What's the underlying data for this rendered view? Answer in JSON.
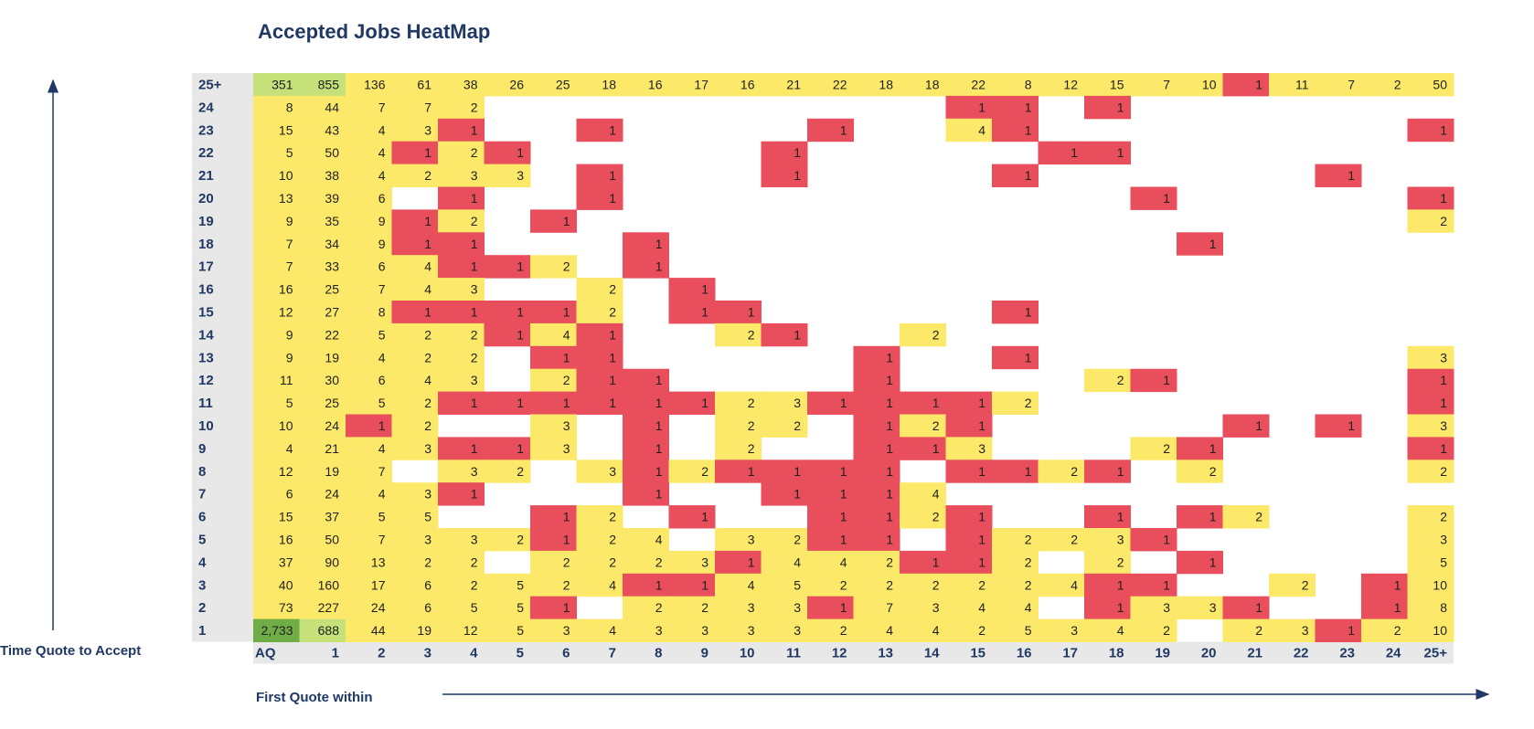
{
  "chart_data": {
    "type": "heatmap",
    "title": "Accepted Jobs HeatMap",
    "xlabel": "First Quote within",
    "ylabel": "Time Quote to Accept",
    "x_categories": [
      "AQ",
      "1",
      "2",
      "3",
      "4",
      "5",
      "6",
      "7",
      "8",
      "9",
      "10",
      "11",
      "12",
      "13",
      "14",
      "15",
      "16",
      "17",
      "18",
      "19",
      "20",
      "21",
      "22",
      "23",
      "24",
      "25+"
    ],
    "y_categories": [
      "25+",
      "24",
      "23",
      "22",
      "21",
      "20",
      "19",
      "18",
      "17",
      "16",
      "15",
      "14",
      "13",
      "12",
      "11",
      "10",
      "9",
      "8",
      "7",
      "6",
      "5",
      "4",
      "3",
      "2",
      "1"
    ],
    "colors": {
      "high": "#70ad47",
      "mid_high": "#c6e07a",
      "mid": "#fce96a",
      "low": "#e84e5c",
      "empty": "#ffffff",
      "axis_band": "#e8e8e8",
      "axis_text": "#1f3864"
    },
    "values": [
      [
        "351",
        "855",
        "136",
        "61",
        "38",
        "26",
        "25",
        "18",
        "16",
        "17",
        "16",
        "21",
        "22",
        "18",
        "18",
        "22",
        "8",
        "12",
        "15",
        "7",
        "10",
        "1",
        "11",
        "7",
        "2",
        "50"
      ],
      [
        "8",
        "44",
        "7",
        "7",
        "2",
        "",
        "",
        "",
        "",
        "",
        "",
        "",
        "",
        "",
        "",
        "1",
        "1",
        "",
        "1",
        "",
        "",
        "",
        "",
        "",
        "",
        ""
      ],
      [
        "15",
        "43",
        "4",
        "3",
        "1",
        "",
        "",
        "1",
        "",
        "",
        "",
        "",
        "1",
        "",
        "",
        "4",
        "1",
        "",
        "",
        "",
        "",
        "",
        "",
        "",
        "",
        "1"
      ],
      [
        "5",
        "50",
        "4",
        "1",
        "2",
        "1",
        "",
        "",
        "",
        "",
        "",
        "1",
        "",
        "",
        "",
        "",
        "",
        "1",
        "1",
        "",
        "",
        "",
        "",
        "",
        "",
        ""
      ],
      [
        "10",
        "38",
        "4",
        "2",
        "3",
        "3",
        "",
        "1",
        "",
        "",
        "",
        "1",
        "",
        "",
        "",
        "",
        "1",
        "",
        "",
        "",
        "",
        "",
        "",
        "1",
        "",
        ""
      ],
      [
        "13",
        "39",
        "6",
        "",
        "1",
        "",
        "",
        "1",
        "",
        "",
        "",
        "",
        "",
        "",
        "",
        "",
        "",
        "",
        "",
        "1",
        "",
        "",
        "",
        "",
        "",
        "1"
      ],
      [
        "9",
        "35",
        "9",
        "1",
        "2",
        "",
        "1",
        "",
        "",
        "",
        "",
        "",
        "",
        "",
        "",
        "",
        "",
        "",
        "",
        "",
        "",
        "",
        "",
        "",
        "",
        "2"
      ],
      [
        "7",
        "34",
        "9",
        "1",
        "1",
        "",
        "",
        "",
        "1",
        "",
        "",
        "",
        "",
        "",
        "",
        "",
        "",
        "",
        "",
        "",
        "1",
        "",
        "",
        "",
        "",
        ""
      ],
      [
        "7",
        "33",
        "6",
        "4",
        "1",
        "1",
        "2",
        "",
        "1",
        "",
        "",
        "",
        "",
        "",
        "",
        "",
        "",
        "",
        "",
        "",
        "",
        "",
        "",
        "",
        "",
        ""
      ],
      [
        "16",
        "25",
        "7",
        "4",
        "3",
        "",
        "",
        "2",
        "",
        "1",
        "",
        "",
        "",
        "",
        "",
        "",
        "",
        "",
        "",
        "",
        "",
        "",
        "",
        "",
        "",
        ""
      ],
      [
        "12",
        "27",
        "8",
        "1",
        "1",
        "1",
        "1",
        "2",
        "",
        "1",
        "1",
        "",
        "",
        "",
        "",
        "",
        "1",
        "",
        "",
        "",
        "",
        "",
        "",
        "",
        "",
        ""
      ],
      [
        "9",
        "22",
        "5",
        "2",
        "2",
        "1",
        "4",
        "1",
        "",
        "",
        "2",
        "1",
        "",
        "",
        "2",
        "",
        "",
        "",
        "",
        "",
        "",
        "",
        "",
        "",
        "",
        ""
      ],
      [
        "9",
        "19",
        "4",
        "2",
        "2",
        "",
        "1",
        "1",
        "",
        "",
        "",
        "",
        "",
        "1",
        "",
        "",
        "1",
        "",
        "",
        "",
        "",
        "",
        "",
        "",
        "",
        "3"
      ],
      [
        "11",
        "30",
        "6",
        "4",
        "3",
        "",
        "2",
        "1",
        "1",
        "",
        "",
        "",
        "",
        "1",
        "",
        "",
        "",
        "",
        "2",
        "1",
        "",
        "",
        "",
        "",
        "",
        "1"
      ],
      [
        "5",
        "25",
        "5",
        "2",
        "1",
        "1",
        "1",
        "1",
        "1",
        "1",
        "2",
        "3",
        "1",
        "1",
        "1",
        "1",
        "2",
        "",
        "",
        "",
        "",
        "",
        "",
        "",
        "",
        "1"
      ],
      [
        "10",
        "24",
        "1",
        "2",
        "",
        "",
        "3",
        "",
        "1",
        "",
        "2",
        "2",
        "",
        "1",
        "2",
        "1",
        "",
        "",
        "",
        "",
        "",
        "1",
        "",
        "1",
        "",
        "3"
      ],
      [
        "4",
        "21",
        "4",
        "3",
        "1",
        "1",
        "3",
        "",
        "1",
        "",
        "2",
        "",
        "",
        "1",
        "1",
        "3",
        "",
        "",
        "",
        "2",
        "1",
        "",
        "",
        "",
        "",
        "1"
      ],
      [
        "12",
        "19",
        "7",
        "",
        "3",
        "2",
        "",
        "3",
        "1",
        "2",
        "1",
        "1",
        "1",
        "1",
        "",
        "1",
        "1",
        "2",
        "1",
        "",
        "2",
        "",
        "",
        "",
        "",
        "2"
      ],
      [
        "6",
        "24",
        "4",
        "3",
        "1",
        "",
        "",
        "",
        "1",
        "",
        "",
        "1",
        "1",
        "1",
        "4",
        "",
        "",
        "",
        "",
        "",
        "",
        "",
        "",
        "",
        "",
        ""
      ],
      [
        "15",
        "37",
        "5",
        "5",
        "",
        "",
        "1",
        "2",
        "",
        "1",
        "",
        "",
        "1",
        "1",
        "2",
        "1",
        "",
        "",
        "1",
        "",
        "1",
        "2",
        "",
        "",
        "",
        "2"
      ],
      [
        "16",
        "50",
        "7",
        "3",
        "3",
        "2",
        "1",
        "2",
        "4",
        "",
        "3",
        "2",
        "1",
        "1",
        "",
        "1",
        "2",
        "2",
        "3",
        "1",
        "",
        "",
        "",
        "",
        "",
        "3"
      ],
      [
        "37",
        "90",
        "13",
        "2",
        "2",
        "",
        "2",
        "2",
        "2",
        "3",
        "1",
        "4",
        "4",
        "2",
        "1",
        "1",
        "2",
        "",
        "2",
        "",
        "1",
        "",
        "",
        "",
        "",
        "5"
      ],
      [
        "40",
        "160",
        "17",
        "6",
        "2",
        "5",
        "2",
        "4",
        "1",
        "1",
        "4",
        "5",
        "2",
        "2",
        "2",
        "2",
        "2",
        "4",
        "1",
        "1",
        "",
        "",
        "2",
        "",
        "1",
        "10"
      ],
      [
        "73",
        "227",
        "24",
        "6",
        "5",
        "5",
        "1",
        "",
        "2",
        "2",
        "3",
        "3",
        "1",
        "7",
        "3",
        "4",
        "4",
        "",
        "1",
        "3",
        "3",
        "1",
        "",
        "",
        "1",
        "8"
      ],
      [
        "2,733",
        "688",
        "44",
        "19",
        "12",
        "5",
        "3",
        "4",
        "3",
        "3",
        "3",
        "3",
        "2",
        "4",
        "4",
        "2",
        "5",
        "3",
        "4",
        "2",
        "",
        "2",
        "3",
        "1",
        "2",
        "10"
      ]
    ],
    "cell_colors": [
      [
        "G",
        "G",
        "Y",
        "Y",
        "Y",
        "Y",
        "Y",
        "Y",
        "Y",
        "Y",
        "Y",
        "Y",
        "Y",
        "Y",
        "Y",
        "Y",
        "Y",
        "Y",
        "Y",
        "Y",
        "Y",
        "R",
        "Y",
        "Y",
        "Y",
        "Y"
      ],
      [
        "Y",
        "Y",
        "Y",
        "Y",
        "Y",
        "",
        "",
        "",
        "",
        "",
        "",
        "",
        "",
        "",
        "",
        "R",
        "R",
        "",
        "R",
        "",
        "",
        "",
        "",
        "",
        "",
        ""
      ],
      [
        "Y",
        "Y",
        "Y",
        "Y",
        "R",
        "",
        "",
        "R",
        "",
        "",
        "",
        "",
        "R",
        "",
        "",
        "Y",
        "R",
        "",
        "",
        "",
        "",
        "",
        "",
        "",
        "",
        "R"
      ],
      [
        "Y",
        "Y",
        "Y",
        "R",
        "Y",
        "R",
        "",
        "",
        "",
        "",
        "",
        "R",
        "",
        "",
        "",
        "",
        "",
        "R",
        "R",
        "",
        "",
        "",
        "",
        "",
        "",
        ""
      ],
      [
        "Y",
        "Y",
        "Y",
        "Y",
        "Y",
        "Y",
        "",
        "R",
        "",
        "",
        "",
        "R",
        "",
        "",
        "",
        "",
        "R",
        "",
        "",
        "",
        "",
        "",
        "",
        "R",
        "",
        ""
      ],
      [
        "Y",
        "Y",
        "Y",
        "",
        "R",
        "",
        "",
        "R",
        "",
        "",
        "",
        "",
        "",
        "",
        "",
        "",
        "",
        "",
        "",
        "R",
        "",
        "",
        "",
        "",
        "",
        "R"
      ],
      [
        "Y",
        "Y",
        "Y",
        "R",
        "Y",
        "",
        "R",
        "",
        "",
        "",
        "",
        "",
        "",
        "",
        "",
        "",
        "",
        "",
        "",
        "",
        "",
        "",
        "",
        "",
        "",
        "Y"
      ],
      [
        "Y",
        "Y",
        "Y",
        "R",
        "R",
        "",
        "",
        "",
        "R",
        "",
        "",
        "",
        "",
        "",
        "",
        "",
        "",
        "",
        "",
        "",
        "R",
        "",
        "",
        "",
        "",
        ""
      ],
      [
        "Y",
        "Y",
        "Y",
        "Y",
        "R",
        "R",
        "Y",
        "",
        "R",
        "",
        "",
        "",
        "",
        "",
        "",
        "",
        "",
        "",
        "",
        "",
        "",
        "",
        "",
        "",
        "",
        ""
      ],
      [
        "Y",
        "Y",
        "Y",
        "Y",
        "Y",
        "",
        "",
        "Y",
        "",
        "R",
        "",
        "",
        "",
        "",
        "",
        "",
        "",
        "",
        "",
        "",
        "",
        "",
        "",
        "",
        "",
        ""
      ],
      [
        "Y",
        "Y",
        "Y",
        "R",
        "R",
        "R",
        "R",
        "Y",
        "",
        "R",
        "R",
        "",
        "",
        "",
        "",
        "",
        "R",
        "",
        "",
        "",
        "",
        "",
        "",
        "",
        "",
        ""
      ],
      [
        "Y",
        "Y",
        "Y",
        "Y",
        "Y",
        "R",
        "Y",
        "R",
        "",
        "",
        "Y",
        "R",
        "",
        "",
        "Y",
        "",
        "",
        "",
        "",
        "",
        "",
        "",
        "",
        "",
        "",
        ""
      ],
      [
        "Y",
        "Y",
        "Y",
        "Y",
        "Y",
        "",
        "R",
        "R",
        "",
        "",
        "",
        "",
        "",
        "R",
        "",
        "",
        "R",
        "",
        "",
        "",
        "",
        "",
        "",
        "",
        "",
        "Y"
      ],
      [
        "Y",
        "Y",
        "Y",
        "Y",
        "Y",
        "",
        "Y",
        "R",
        "R",
        "",
        "",
        "",
        "",
        "R",
        "",
        "",
        "",
        "",
        "Y",
        "R",
        "",
        "",
        "",
        "",
        "",
        "R"
      ],
      [
        "Y",
        "Y",
        "Y",
        "Y",
        "R",
        "R",
        "R",
        "R",
        "R",
        "R",
        "Y",
        "Y",
        "R",
        "R",
        "R",
        "R",
        "Y",
        "",
        "",
        "",
        "",
        "",
        "",
        "",
        "",
        "R"
      ],
      [
        "Y",
        "Y",
        "R",
        "Y",
        "",
        "",
        "Y",
        "",
        "R",
        "",
        "Y",
        "Y",
        "",
        "R",
        "Y",
        "R",
        "",
        "",
        "",
        "",
        "",
        "R",
        "",
        "R",
        "",
        "Y"
      ],
      [
        "Y",
        "Y",
        "Y",
        "Y",
        "R",
        "R",
        "Y",
        "",
        "R",
        "",
        "Y",
        "",
        "",
        "R",
        "R",
        "Y",
        "",
        "",
        "",
        "Y",
        "R",
        "",
        "",
        "",
        "",
        "R"
      ],
      [
        "Y",
        "Y",
        "Y",
        "",
        "Y",
        "Y",
        "",
        "Y",
        "R",
        "Y",
        "R",
        "R",
        "R",
        "R",
        "",
        "R",
        "R",
        "Y",
        "R",
        "",
        "Y",
        "",
        "",
        "",
        "",
        "Y"
      ],
      [
        "Y",
        "Y",
        "Y",
        "Y",
        "R",
        "",
        "",
        "",
        "R",
        "",
        "",
        "R",
        "R",
        "R",
        "Y",
        "",
        "",
        "",
        "",
        "",
        "",
        "",
        "",
        "",
        "",
        ""
      ],
      [
        "Y",
        "Y",
        "Y",
        "Y",
        "",
        "",
        "R",
        "Y",
        "",
        "R",
        "",
        "",
        "R",
        "R",
        "Y",
        "R",
        "",
        "",
        "R",
        "",
        "R",
        "Y",
        "",
        "",
        "",
        "Y"
      ],
      [
        "Y",
        "Y",
        "Y",
        "Y",
        "Y",
        "Y",
        "R",
        "Y",
        "Y",
        "",
        "Y",
        "Y",
        "R",
        "R",
        "",
        "R",
        "Y",
        "Y",
        "Y",
        "R",
        "",
        "",
        "",
        "",
        "",
        "Y"
      ],
      [
        "Y",
        "Y",
        "Y",
        "Y",
        "Y",
        "",
        "Y",
        "Y",
        "Y",
        "Y",
        "R",
        "Y",
        "Y",
        "Y",
        "R",
        "R",
        "Y",
        "",
        "Y",
        "",
        "R",
        "",
        "",
        "",
        "",
        "Y"
      ],
      [
        "Y",
        "Y",
        "Y",
        "Y",
        "Y",
        "Y",
        "Y",
        "Y",
        "R",
        "R",
        "Y",
        "Y",
        "Y",
        "Y",
        "Y",
        "Y",
        "Y",
        "Y",
        "R",
        "R",
        "",
        "",
        "Y",
        "",
        "R",
        "Y"
      ],
      [
        "Y",
        "Y",
        "Y",
        "Y",
        "Y",
        "Y",
        "R",
        "",
        "Y",
        "Y",
        "Y",
        "Y",
        "R",
        "Y",
        "Y",
        "Y",
        "Y",
        "",
        "R",
        "Y",
        "Y",
        "R",
        "",
        "",
        "R",
        "Y"
      ],
      [
        "D",
        "G",
        "Y",
        "Y",
        "Y",
        "Y",
        "Y",
        "Y",
        "Y",
        "Y",
        "Y",
        "Y",
        "Y",
        "Y",
        "Y",
        "Y",
        "Y",
        "Y",
        "Y",
        "Y",
        "",
        "Y",
        "Y",
        "R",
        "Y",
        "Y"
      ]
    ]
  }
}
